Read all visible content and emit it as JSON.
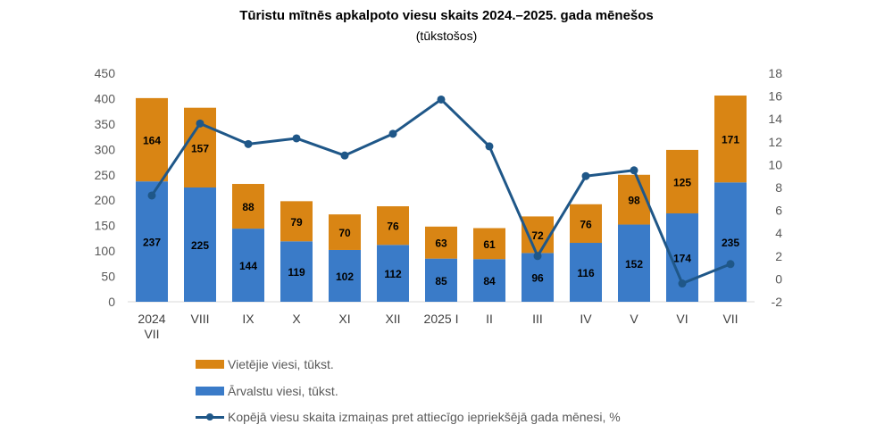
{
  "title": "Tūristu mītnēs apkalpoto viesu skaits 2024.–2025. gada mēnešos",
  "subtitle": "(tūkstošos)",
  "colors": {
    "local": "#D98514",
    "foreign": "#3A7BC8",
    "line": "#1F5788"
  },
  "chart_data": {
    "type": "bar",
    "stacked": true,
    "categories": [
      "2024\nVII",
      "VIII",
      "IX",
      "X",
      "XI",
      "XII",
      "2025 I",
      "II",
      "III",
      "IV",
      "V",
      "VI",
      "VII"
    ],
    "series": [
      {
        "name": "Ārvalstu viesi, tūkst.",
        "values": [
          237,
          225,
          144,
          119,
          102,
          112,
          85,
          84,
          96,
          116,
          152,
          174,
          235
        ]
      },
      {
        "name": "Vietējie viesi, tūkst.",
        "values": [
          164,
          157,
          88,
          79,
          70,
          76,
          63,
          61,
          72,
          76,
          98,
          125,
          171
        ]
      }
    ],
    "line_series": {
      "name": "Kopējā viesu skaita izmaiņas pret attiecīgo iepriekšējā gada mēnesi, %",
      "axis": "right",
      "values": [
        7.3,
        13.6,
        11.8,
        12.3,
        10.8,
        12.7,
        15.7,
        11.6,
        2.0,
        9.0,
        9.5,
        -0.4,
        1.3
      ]
    },
    "ylim_left": [
      0,
      450
    ],
    "yticks_left": [
      0,
      50,
      100,
      150,
      200,
      250,
      300,
      350,
      400,
      450
    ],
    "ylim_right": [
      -2,
      18
    ],
    "yticks_right": [
      -2,
      0,
      2,
      4,
      6,
      8,
      10,
      12,
      14,
      16,
      18
    ],
    "grid": false,
    "legend_position": "bottom"
  }
}
